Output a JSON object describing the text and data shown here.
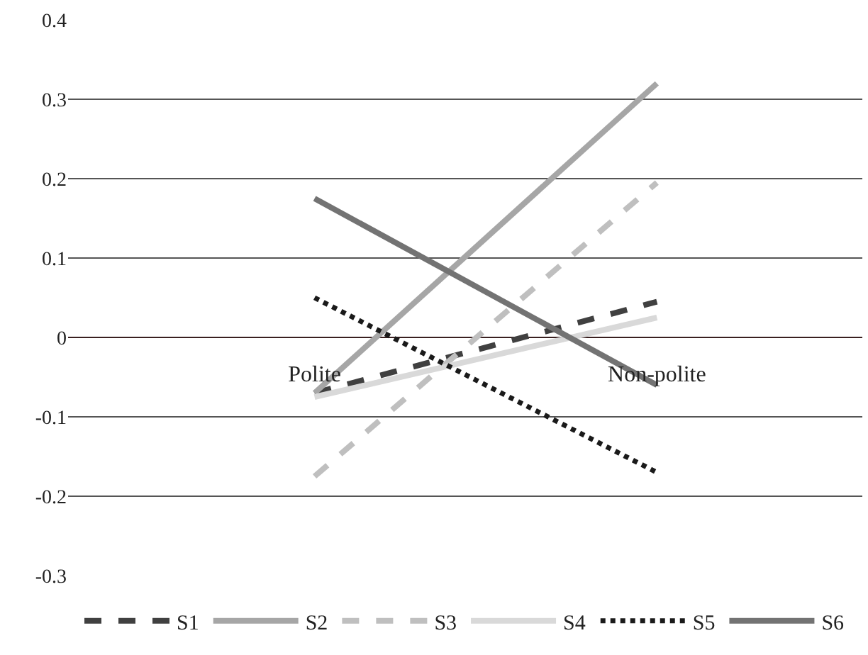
{
  "chart_data": {
    "type": "line",
    "categories": [
      "Polite",
      "Non-polite"
    ],
    "series": [
      {
        "name": "S1",
        "color": "#404040",
        "line_style": "dashed",
        "values": [
          -0.07,
          0.045
        ]
      },
      {
        "name": "S2",
        "color": "#a6a6a6",
        "line_style": "solid",
        "values": [
          -0.07,
          0.32
        ]
      },
      {
        "name": "S3",
        "color": "#bfbfbf",
        "line_style": "dashed",
        "values": [
          -0.175,
          0.195
        ]
      },
      {
        "name": "S4",
        "color": "#d9d9d9",
        "line_style": "solid",
        "values": [
          -0.075,
          0.025
        ]
      },
      {
        "name": "S5",
        "color": "#1a1a1a",
        "line_style": "dotted",
        "values": [
          0.05,
          -0.17
        ]
      },
      {
        "name": "S6",
        "color": "#737373",
        "line_style": "solid",
        "values": [
          0.175,
          -0.06
        ]
      }
    ],
    "ylim": [
      -0.3,
      0.4
    ],
    "yticks": [
      {
        "value": -0.3,
        "label": "-0.3"
      },
      {
        "value": -0.2,
        "label": "-0.2"
      },
      {
        "value": -0.1,
        "label": "-0.1"
      },
      {
        "value": 0,
        "label": "0"
      },
      {
        "value": 0.1,
        "label": "0.1"
      },
      {
        "value": 0.2,
        "label": "0.2"
      },
      {
        "value": 0.3,
        "label": "0.3"
      },
      {
        "value": 0.4,
        "label": "0.4"
      }
    ],
    "grid": "y",
    "legend": "bottom",
    "marker": "none"
  }
}
